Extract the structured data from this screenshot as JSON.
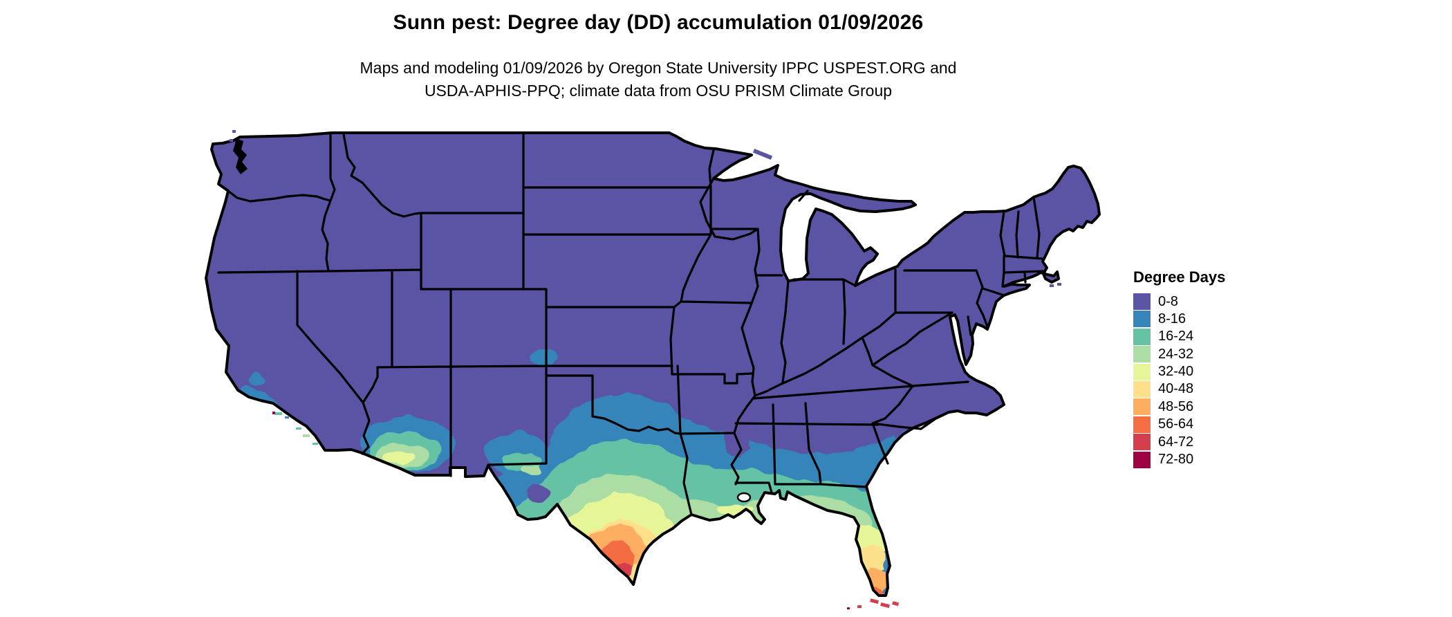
{
  "title": "Sunn pest: Degree day (DD) accumulation 01/09/2026",
  "subtitle": {
    "line1": "Maps and modeling 01/09/2026 by Oregon State University IPPC USPEST.ORG and",
    "line2": "USDA-APHIS-PPQ; climate data from OSU PRISM Climate Group"
  },
  "legend": {
    "title": "Degree Days",
    "entries": [
      {
        "label": "0-8",
        "color": "#5b53a4"
      },
      {
        "label": "8-16",
        "color": "#3585bb"
      },
      {
        "label": "16-24",
        "color": "#66c2a5"
      },
      {
        "label": "24-32",
        "color": "#abdda4"
      },
      {
        "label": "32-40",
        "color": "#e6f598"
      },
      {
        "label": "40-48",
        "color": "#fee08b"
      },
      {
        "label": "48-56",
        "color": "#fdae61"
      },
      {
        "label": "56-64",
        "color": "#f46d43"
      },
      {
        "label": "64-72",
        "color": "#d53e4f"
      },
      {
        "label": "72-80",
        "color": "#9e0142"
      }
    ]
  },
  "map": {
    "name": "Contiguous United States degree-day choropleth",
    "base_color": "#5b53a4",
    "border_color": "#000000",
    "water_color": "#ffffff"
  }
}
